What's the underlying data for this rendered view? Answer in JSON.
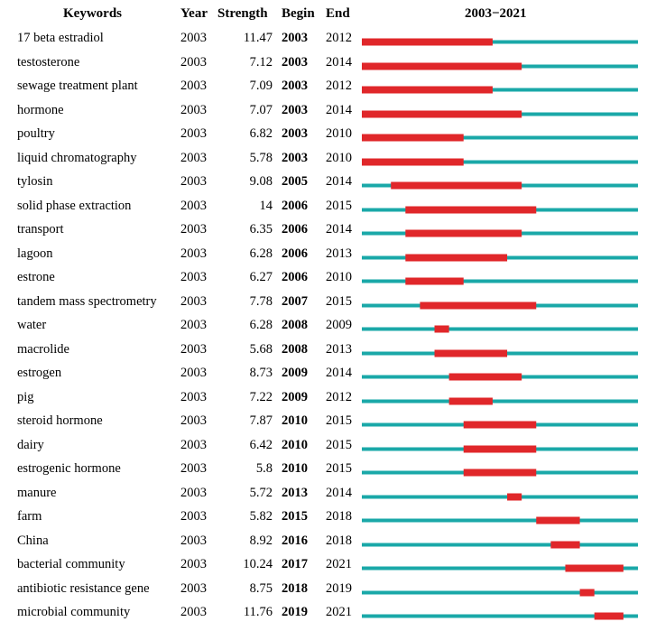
{
  "header": {
    "keywords": "Keywords",
    "year": "Year",
    "strength": "Strength",
    "begin": "Begin",
    "end": "End",
    "range": "2003−2021"
  },
  "colors": {
    "baseline": "#1aa8a8",
    "burst": "#e0272a"
  },
  "chart_data": {
    "type": "table",
    "timeline": {
      "start": 2003,
      "end": 2021
    },
    "rows": [
      {
        "keyword": "17 beta estradiol",
        "year": "2003",
        "strength": "11.47",
        "begin": "2003",
        "end": "2012"
      },
      {
        "keyword": "testosterone",
        "year": "2003",
        "strength": "7.12",
        "begin": "2003",
        "end": "2014"
      },
      {
        "keyword": "sewage treatment plant",
        "year": "2003",
        "strength": "7.09",
        "begin": "2003",
        "end": "2012"
      },
      {
        "keyword": "hormone",
        "year": "2003",
        "strength": "7.07",
        "begin": "2003",
        "end": "2014"
      },
      {
        "keyword": "poultry",
        "year": "2003",
        "strength": "6.82",
        "begin": "2003",
        "end": "2010"
      },
      {
        "keyword": "liquid chromatography",
        "year": "2003",
        "strength": "5.78",
        "begin": "2003",
        "end": "2010"
      },
      {
        "keyword": "tylosin",
        "year": "2003",
        "strength": "9.08",
        "begin": "2005",
        "end": "2014"
      },
      {
        "keyword": "solid phase extraction",
        "year": "2003",
        "strength": "14",
        "begin": "2006",
        "end": "2015"
      },
      {
        "keyword": "transport",
        "year": "2003",
        "strength": "6.35",
        "begin": "2006",
        "end": "2014"
      },
      {
        "keyword": "lagoon",
        "year": "2003",
        "strength": "6.28",
        "begin": "2006",
        "end": "2013"
      },
      {
        "keyword": "estrone",
        "year": "2003",
        "strength": "6.27",
        "begin": "2006",
        "end": "2010"
      },
      {
        "keyword": "tandem mass spectrometry",
        "year": "2003",
        "strength": "7.78",
        "begin": "2007",
        "end": "2015"
      },
      {
        "keyword": "water",
        "year": "2003",
        "strength": "6.28",
        "begin": "2008",
        "end": "2009"
      },
      {
        "keyword": "macrolide",
        "year": "2003",
        "strength": "5.68",
        "begin": "2008",
        "end": "2013"
      },
      {
        "keyword": "estrogen",
        "year": "2003",
        "strength": "8.73",
        "begin": "2009",
        "end": "2014"
      },
      {
        "keyword": "pig",
        "year": "2003",
        "strength": "7.22",
        "begin": "2009",
        "end": "2012"
      },
      {
        "keyword": "steroid hormone",
        "year": "2003",
        "strength": "7.87",
        "begin": "2010",
        "end": "2015"
      },
      {
        "keyword": "dairy",
        "year": "2003",
        "strength": "6.42",
        "begin": "2010",
        "end": "2015"
      },
      {
        "keyword": "estrogenic hormone",
        "year": "2003",
        "strength": "5.8",
        "begin": "2010",
        "end": "2015"
      },
      {
        "keyword": "manure",
        "year": "2003",
        "strength": "5.72",
        "begin": "2013",
        "end": "2014"
      },
      {
        "keyword": "farm",
        "year": "2003",
        "strength": "5.82",
        "begin": "2015",
        "end": "2018"
      },
      {
        "keyword": "China",
        "year": "2003",
        "strength": "8.92",
        "begin": "2016",
        "end": "2018"
      },
      {
        "keyword": "bacterial community",
        "year": "2003",
        "strength": "10.24",
        "begin": "2017",
        "end": "2021"
      },
      {
        "keyword": "antibiotic resistance gene",
        "year": "2003",
        "strength": "8.75",
        "begin": "2018",
        "end": "2019"
      },
      {
        "keyword": "microbial community",
        "year": "2003",
        "strength": "11.76",
        "begin": "2019",
        "end": "2021"
      }
    ]
  }
}
